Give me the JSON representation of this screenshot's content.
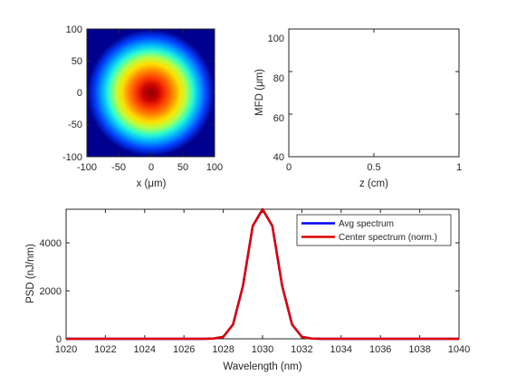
{
  "colors": {
    "background": "#ffffff",
    "axis": "#262626",
    "avg_series": "#0000ff",
    "center_series": "#e00000",
    "colormap": "jet"
  },
  "chart_data": [
    {
      "type": "heatmap",
      "title": "",
      "xlabel": "x (μm)",
      "ylabel": "",
      "xlim": [
        -100,
        100
      ],
      "ylim": [
        -100,
        100
      ],
      "xticks": [
        "-100",
        "-50",
        "0",
        "50",
        "100"
      ],
      "yticks": [
        "100",
        "50",
        "0",
        "-50",
        "-100"
      ],
      "colormap": "jet",
      "beam": {
        "center_x": 0,
        "center_y": 0,
        "radius_1_e2": 45,
        "peak_value": 1
      }
    },
    {
      "type": "line",
      "title": "",
      "xlabel": "z (cm)",
      "ylabel": "MFD (μm)",
      "xlim": [
        0,
        1
      ],
      "ylim": [
        40,
        100
      ],
      "xticks": [
        "0",
        "0.5",
        "1"
      ],
      "yticks": [
        "40",
        "60",
        "80",
        "100"
      ],
      "series": []
    },
    {
      "type": "line",
      "title": "",
      "xlabel": "Wavelength (nm)",
      "ylabel": "PSD (nJ/nm)",
      "xlim": [
        1020,
        1040
      ],
      "ylim": [
        0,
        5400
      ],
      "xticks": [
        "1020",
        "1022",
        "1024",
        "1026",
        "1028",
        "1030",
        "1032",
        "1034",
        "1036",
        "1038",
        "1040"
      ],
      "yticks": [
        "0",
        "2000",
        "4000"
      ],
      "legend_position": "top-right",
      "x": [
        1020,
        1027,
        1027.5,
        1028,
        1028.5,
        1029,
        1029.5,
        1030,
        1030.5,
        1031,
        1031.5,
        1032,
        1032.5,
        1033,
        1040
      ],
      "series": [
        {
          "name": "Avg spectrum",
          "color": "#0000ff",
          "values": [
            0,
            0,
            10,
            80,
            600,
            2200,
            4700,
            5400,
            4700,
            2200,
            600,
            80,
            10,
            0,
            0
          ]
        },
        {
          "name": "Center spectrum (norm.)",
          "color": "#e00000",
          "values": [
            0,
            0,
            10,
            80,
            600,
            2200,
            4700,
            5400,
            4700,
            2200,
            600,
            80,
            10,
            0,
            0
          ]
        }
      ]
    }
  ]
}
